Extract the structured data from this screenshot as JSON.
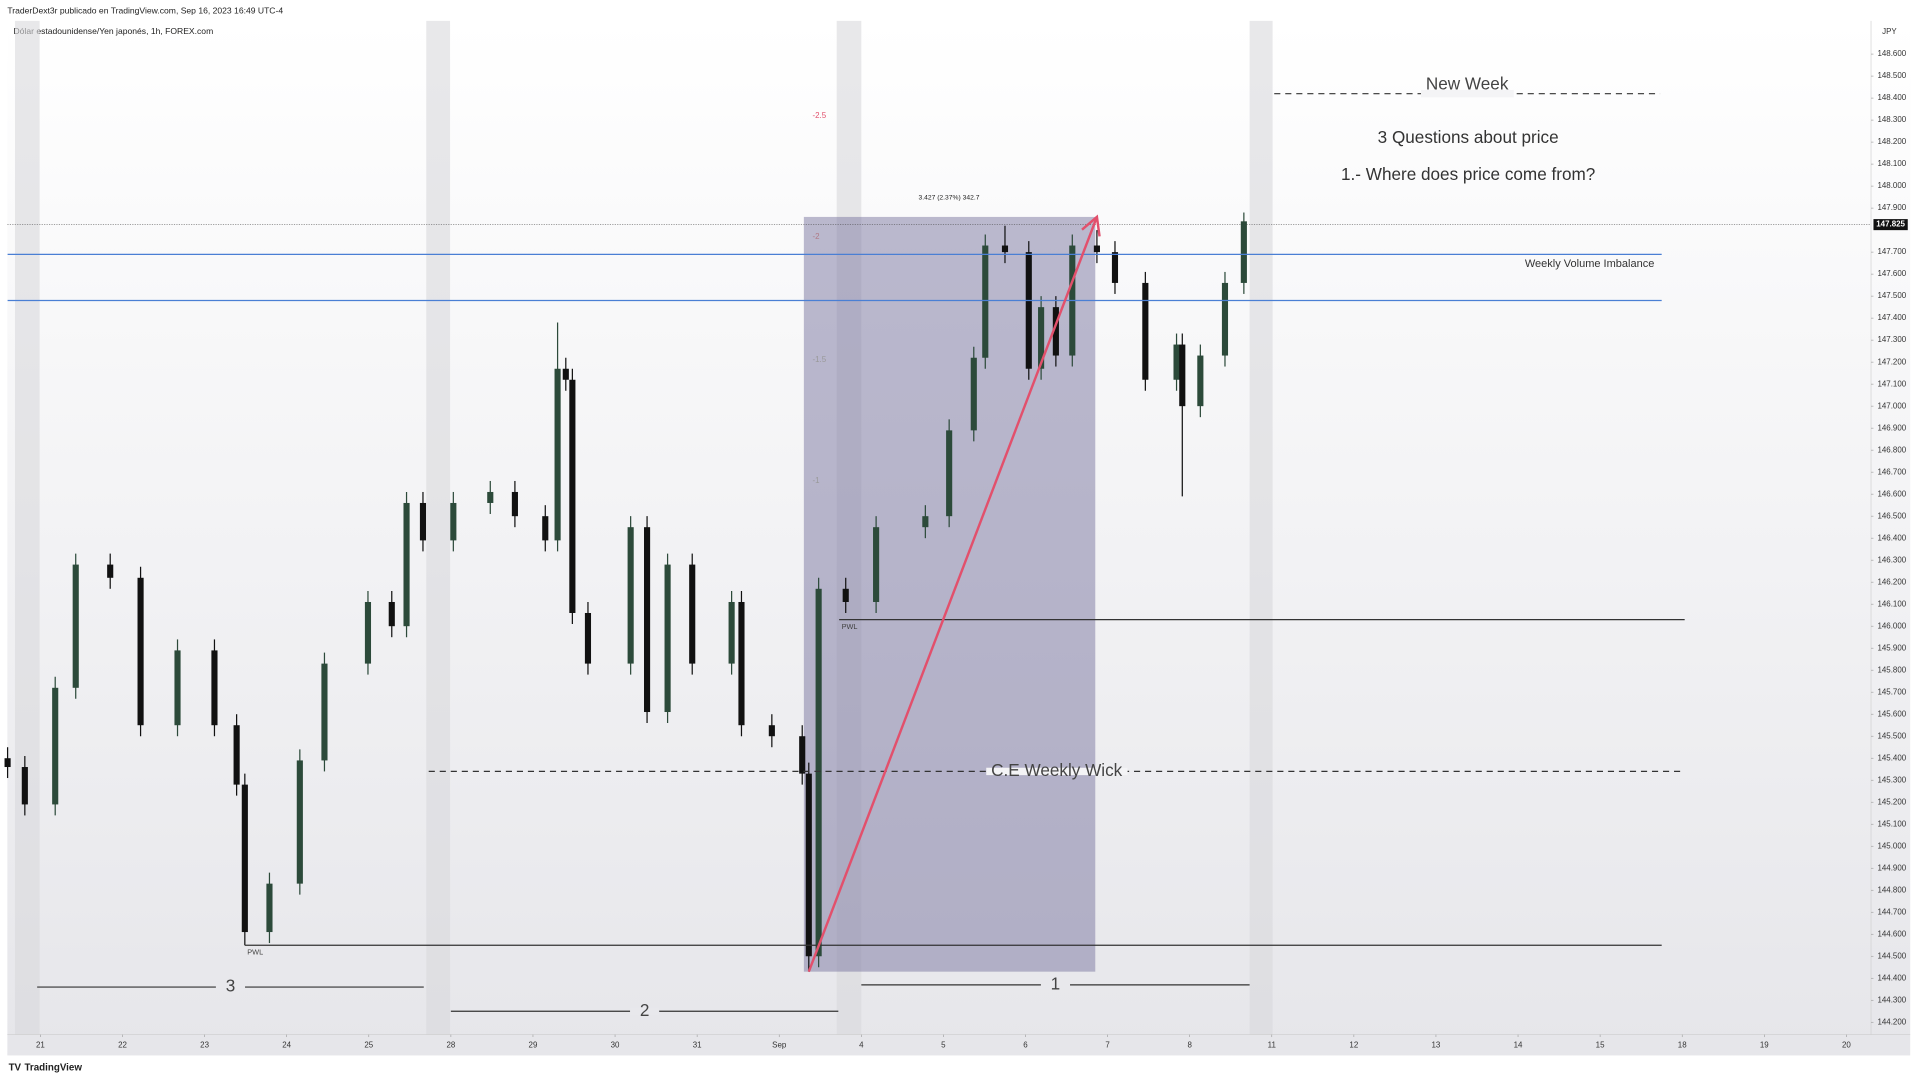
{
  "header": "TraderDext3r publicado en TradingView.com, Sep 16, 2023 16:49 UTC-4",
  "footer": "TradingView",
  "chart_data": {
    "type": "candlestick",
    "title": "Dólar estadounidense/Yen japonés, 1h, FOREX.com",
    "currency": "JPY",
    "x": [
      -0.4,
      -0.19,
      0.18,
      0.43,
      0.85,
      1.22,
      1.67,
      2.12,
      2.39,
      2.49,
      2.79,
      3.16,
      3.46,
      3.99,
      4.28,
      4.46,
      4.66,
      5.03,
      5.48,
      5.78,
      6.15,
      6.3,
      6.4,
      6.48,
      6.67,
      7.19,
      7.39,
      7.64,
      7.94,
      8.42,
      8.54,
      8.91,
      9.28,
      9.36,
      9.48,
      9.81,
      10.18,
      10.78,
      11.07,
      11.37,
      11.51,
      11.75,
      12.04,
      12.19,
      12.37,
      12.57,
      12.87,
      13.09,
      13.46,
      13.84,
      13.91,
      14.13,
      14.43,
      14.66
    ],
    "open": [
      145.4,
      145.36,
      145.19,
      145.72,
      146.28,
      146.22,
      145.55,
      145.89,
      145.55,
      145.28,
      144.61,
      144.83,
      145.39,
      145.83,
      146.11,
      146.0,
      146.56,
      146.39,
      146.56,
      146.61,
      146.5,
      146.39,
      147.17,
      147.12,
      146.06,
      145.83,
      146.45,
      145.61,
      146.28,
      145.83,
      146.11,
      145.55,
      145.5,
      145.33,
      144.5,
      146.17,
      146.11,
      146.45,
      146.5,
      146.89,
      147.22,
      147.73,
      147.7,
      147.17,
      147.45,
      147.23,
      147.73,
      147.7,
      147.56,
      147.12,
      147.28,
      147.0,
      147.23,
      147.56
    ],
    "high": [
      145.45,
      145.41,
      145.77,
      146.33,
      146.33,
      146.27,
      145.94,
      145.94,
      145.6,
      145.33,
      144.88,
      145.44,
      145.88,
      146.16,
      146.16,
      146.61,
      146.61,
      146.61,
      146.66,
      146.66,
      146.55,
      147.38,
      147.22,
      147.17,
      146.11,
      146.5,
      146.5,
      146.33,
      146.33,
      146.16,
      146.16,
      145.6,
      145.55,
      145.38,
      146.22,
      146.22,
      146.5,
      146.55,
      146.94,
      147.27,
      147.78,
      147.82,
      147.75,
      147.5,
      147.5,
      147.78,
      147.8,
      147.75,
      147.61,
      147.33,
      147.33,
      147.28,
      147.61,
      147.88
    ],
    "low": [
      145.31,
      145.14,
      145.14,
      145.67,
      146.17,
      145.5,
      145.5,
      145.5,
      145.23,
      144.55,
      144.56,
      144.78,
      145.34,
      145.78,
      145.95,
      145.95,
      146.34,
      146.34,
      146.51,
      146.45,
      146.34,
      146.34,
      147.07,
      146.01,
      145.78,
      145.78,
      145.56,
      145.56,
      145.78,
      145.78,
      145.5,
      145.45,
      145.28,
      144.43,
      144.45,
      146.06,
      146.06,
      146.4,
      146.45,
      146.84,
      147.17,
      147.65,
      147.12,
      147.12,
      147.18,
      147.18,
      147.65,
      147.51,
      147.07,
      147.07,
      146.59,
      146.95,
      147.18,
      147.51
    ],
    "close": [
      145.36,
      145.19,
      145.72,
      146.28,
      146.22,
      145.55,
      145.89,
      145.55,
      145.28,
      144.61,
      144.83,
      145.39,
      145.83,
      146.11,
      146.0,
      146.56,
      146.39,
      146.56,
      146.61,
      146.5,
      146.39,
      147.17,
      147.12,
      146.06,
      145.83,
      146.45,
      145.61,
      146.28,
      145.83,
      146.11,
      145.55,
      145.5,
      145.33,
      144.5,
      146.17,
      146.11,
      146.45,
      146.5,
      146.89,
      147.22,
      147.73,
      147.7,
      147.17,
      147.45,
      147.23,
      147.73,
      147.7,
      147.56,
      147.12,
      147.28,
      147.0,
      147.23,
      147.56,
      147.84
    ],
    "up_color": "#2c4a3a",
    "down_color": "#111111",
    "xlim": [
      -0.403,
      22.3
    ],
    "ylim": [
      144.144,
      148.751
    ],
    "xticks": [
      {
        "value": 0,
        "label": "21"
      },
      {
        "value": 1,
        "label": "22"
      },
      {
        "value": 2,
        "label": "23"
      },
      {
        "value": 3,
        "label": "24"
      },
      {
        "value": 4,
        "label": "25"
      },
      {
        "value": 5,
        "label": "28"
      },
      {
        "value": 6,
        "label": "29"
      },
      {
        "value": 7,
        "label": "30"
      },
      {
        "value": 8,
        "label": "31"
      },
      {
        "value": 9,
        "label": "Sep"
      },
      {
        "value": 10,
        "label": "4"
      },
      {
        "value": 11,
        "label": "5"
      },
      {
        "value": 12,
        "label": "6"
      },
      {
        "value": 13,
        "label": "7"
      },
      {
        "value": 14,
        "label": "8"
      },
      {
        "value": 15,
        "label": "11"
      },
      {
        "value": 16,
        "label": "12"
      },
      {
        "value": 17,
        "label": "13"
      },
      {
        "value": 18,
        "label": "14"
      },
      {
        "value": 19,
        "label": "15"
      },
      {
        "value": 20,
        "label": "18"
      },
      {
        "value": 21,
        "label": "19"
      },
      {
        "value": 22,
        "label": "20"
      }
    ],
    "yticks": [
      {
        "value": 148.6,
        "label": "148.600"
      },
      {
        "value": 148.5,
        "label": "148.500"
      },
      {
        "value": 148.4,
        "label": "148.400"
      },
      {
        "value": 148.3,
        "label": "148.300"
      },
      {
        "value": 148.2,
        "label": "148.200"
      },
      {
        "value": 148.1,
        "label": "148.100"
      },
      {
        "value": 148.0,
        "label": "148.000"
      },
      {
        "value": 147.9,
        "label": "147.900"
      },
      {
        "value": 147.7,
        "label": "147.700"
      },
      {
        "value": 147.6,
        "label": "147.600"
      },
      {
        "value": 147.5,
        "label": "147.500"
      },
      {
        "value": 147.4,
        "label": "147.400"
      },
      {
        "value": 147.3,
        "label": "147.300"
      },
      {
        "value": 147.2,
        "label": "147.200"
      },
      {
        "value": 147.1,
        "label": "147.100"
      },
      {
        "value": 147.0,
        "label": "147.000"
      },
      {
        "value": 146.9,
        "label": "146.900"
      },
      {
        "value": 146.8,
        "label": "146.800"
      },
      {
        "value": 146.7,
        "label": "146.700"
      },
      {
        "value": 146.6,
        "label": "146.600"
      },
      {
        "value": 146.5,
        "label": "146.500"
      },
      {
        "value": 146.4,
        "label": "146.400"
      },
      {
        "value": 146.3,
        "label": "146.300"
      },
      {
        "value": 146.2,
        "label": "146.200"
      },
      {
        "value": 146.1,
        "label": "146.100"
      },
      {
        "value": 146.0,
        "label": "146.000"
      },
      {
        "value": 145.9,
        "label": "145.900"
      },
      {
        "value": 145.8,
        "label": "145.800"
      },
      {
        "value": 145.7,
        "label": "145.700"
      },
      {
        "value": 145.6,
        "label": "145.600"
      },
      {
        "value": 145.5,
        "label": "145.500"
      },
      {
        "value": 145.4,
        "label": "145.400"
      },
      {
        "value": 145.3,
        "label": "145.300"
      },
      {
        "value": 145.2,
        "label": "145.200"
      },
      {
        "value": 145.1,
        "label": "145.100"
      },
      {
        "value": 145.0,
        "label": "145.000"
      },
      {
        "value": 144.9,
        "label": "144.900"
      },
      {
        "value": 144.8,
        "label": "144.800"
      },
      {
        "value": 144.7,
        "label": "144.700"
      },
      {
        "value": 144.6,
        "label": "144.600"
      },
      {
        "value": 144.5,
        "label": "144.500"
      },
      {
        "value": 144.4,
        "label": "144.400"
      },
      {
        "value": 144.3,
        "label": "144.300"
      },
      {
        "value": 144.2,
        "label": "144.200"
      }
    ],
    "last_price": 147.825,
    "weekend_bands": [
      [
        -0.31,
        -0.01
      ],
      [
        4.7,
        4.99
      ],
      [
        9.7,
        10.0
      ],
      [
        14.73,
        15.01
      ]
    ],
    "levels": [
      {
        "label": "Weekly Volume Imbalance",
        "value": 147.69,
        "x": [
          -0.4,
          19.75
        ],
        "color": "#4a7fd4",
        "dashed": false
      },
      {
        "value": 147.48,
        "x": [
          -0.4,
          19.75
        ],
        "color": "#4a7fd4",
        "dashed": false
      },
      {
        "label": "PWL",
        "value": 144.55,
        "x": [
          2.49,
          19.75
        ],
        "color": "#333333",
        "dashed": false
      },
      {
        "label": "PWL",
        "value": 146.03,
        "x": [
          9.73,
          20.03
        ],
        "color": "#333333",
        "dashed": false
      },
      {
        "label": "C.E Weekly Wick",
        "value": 145.34,
        "x": [
          4.73,
          20.03
        ],
        "color": "#333333",
        "dashed": true
      },
      {
        "label": "New Week",
        "value": 148.42,
        "x": [
          15.03,
          19.73
        ],
        "color": "#333333",
        "dashed": true
      }
    ],
    "zone": {
      "x": [
        9.3,
        12.85
      ],
      "y": [
        144.43,
        147.86
      ],
      "color": "#7a76a0"
    },
    "arrow": {
      "x": [
        9.36,
        12.87
      ],
      "y": [
        144.43,
        147.86
      ],
      "color": "#e2506c"
    },
    "fib_levels": [
      {
        "value": -2.5,
        "price": 148.32,
        "color": "#e2506c"
      },
      {
        "value": -2,
        "price": 147.77,
        "color": "#b07a86"
      },
      {
        "value": -1.5,
        "price": 147.21,
        "color": "#999999"
      },
      {
        "value": -1,
        "price": 146.66,
        "color": "#999999"
      }
    ],
    "measurement": "3.427 (2.37%) 342.7",
    "notes": [
      "3 Questions about price",
      "1.- Where does price come from?"
    ],
    "legs": [
      {
        "label": "3",
        "x": [
          -0.04,
          4.67
        ],
        "price": 144.36
      },
      {
        "label": "2",
        "x": [
          5.0,
          9.72
        ],
        "price": 144.25
      },
      {
        "label": "1",
        "x": [
          10.0,
          14.73
        ],
        "price": 144.37
      }
    ]
  }
}
